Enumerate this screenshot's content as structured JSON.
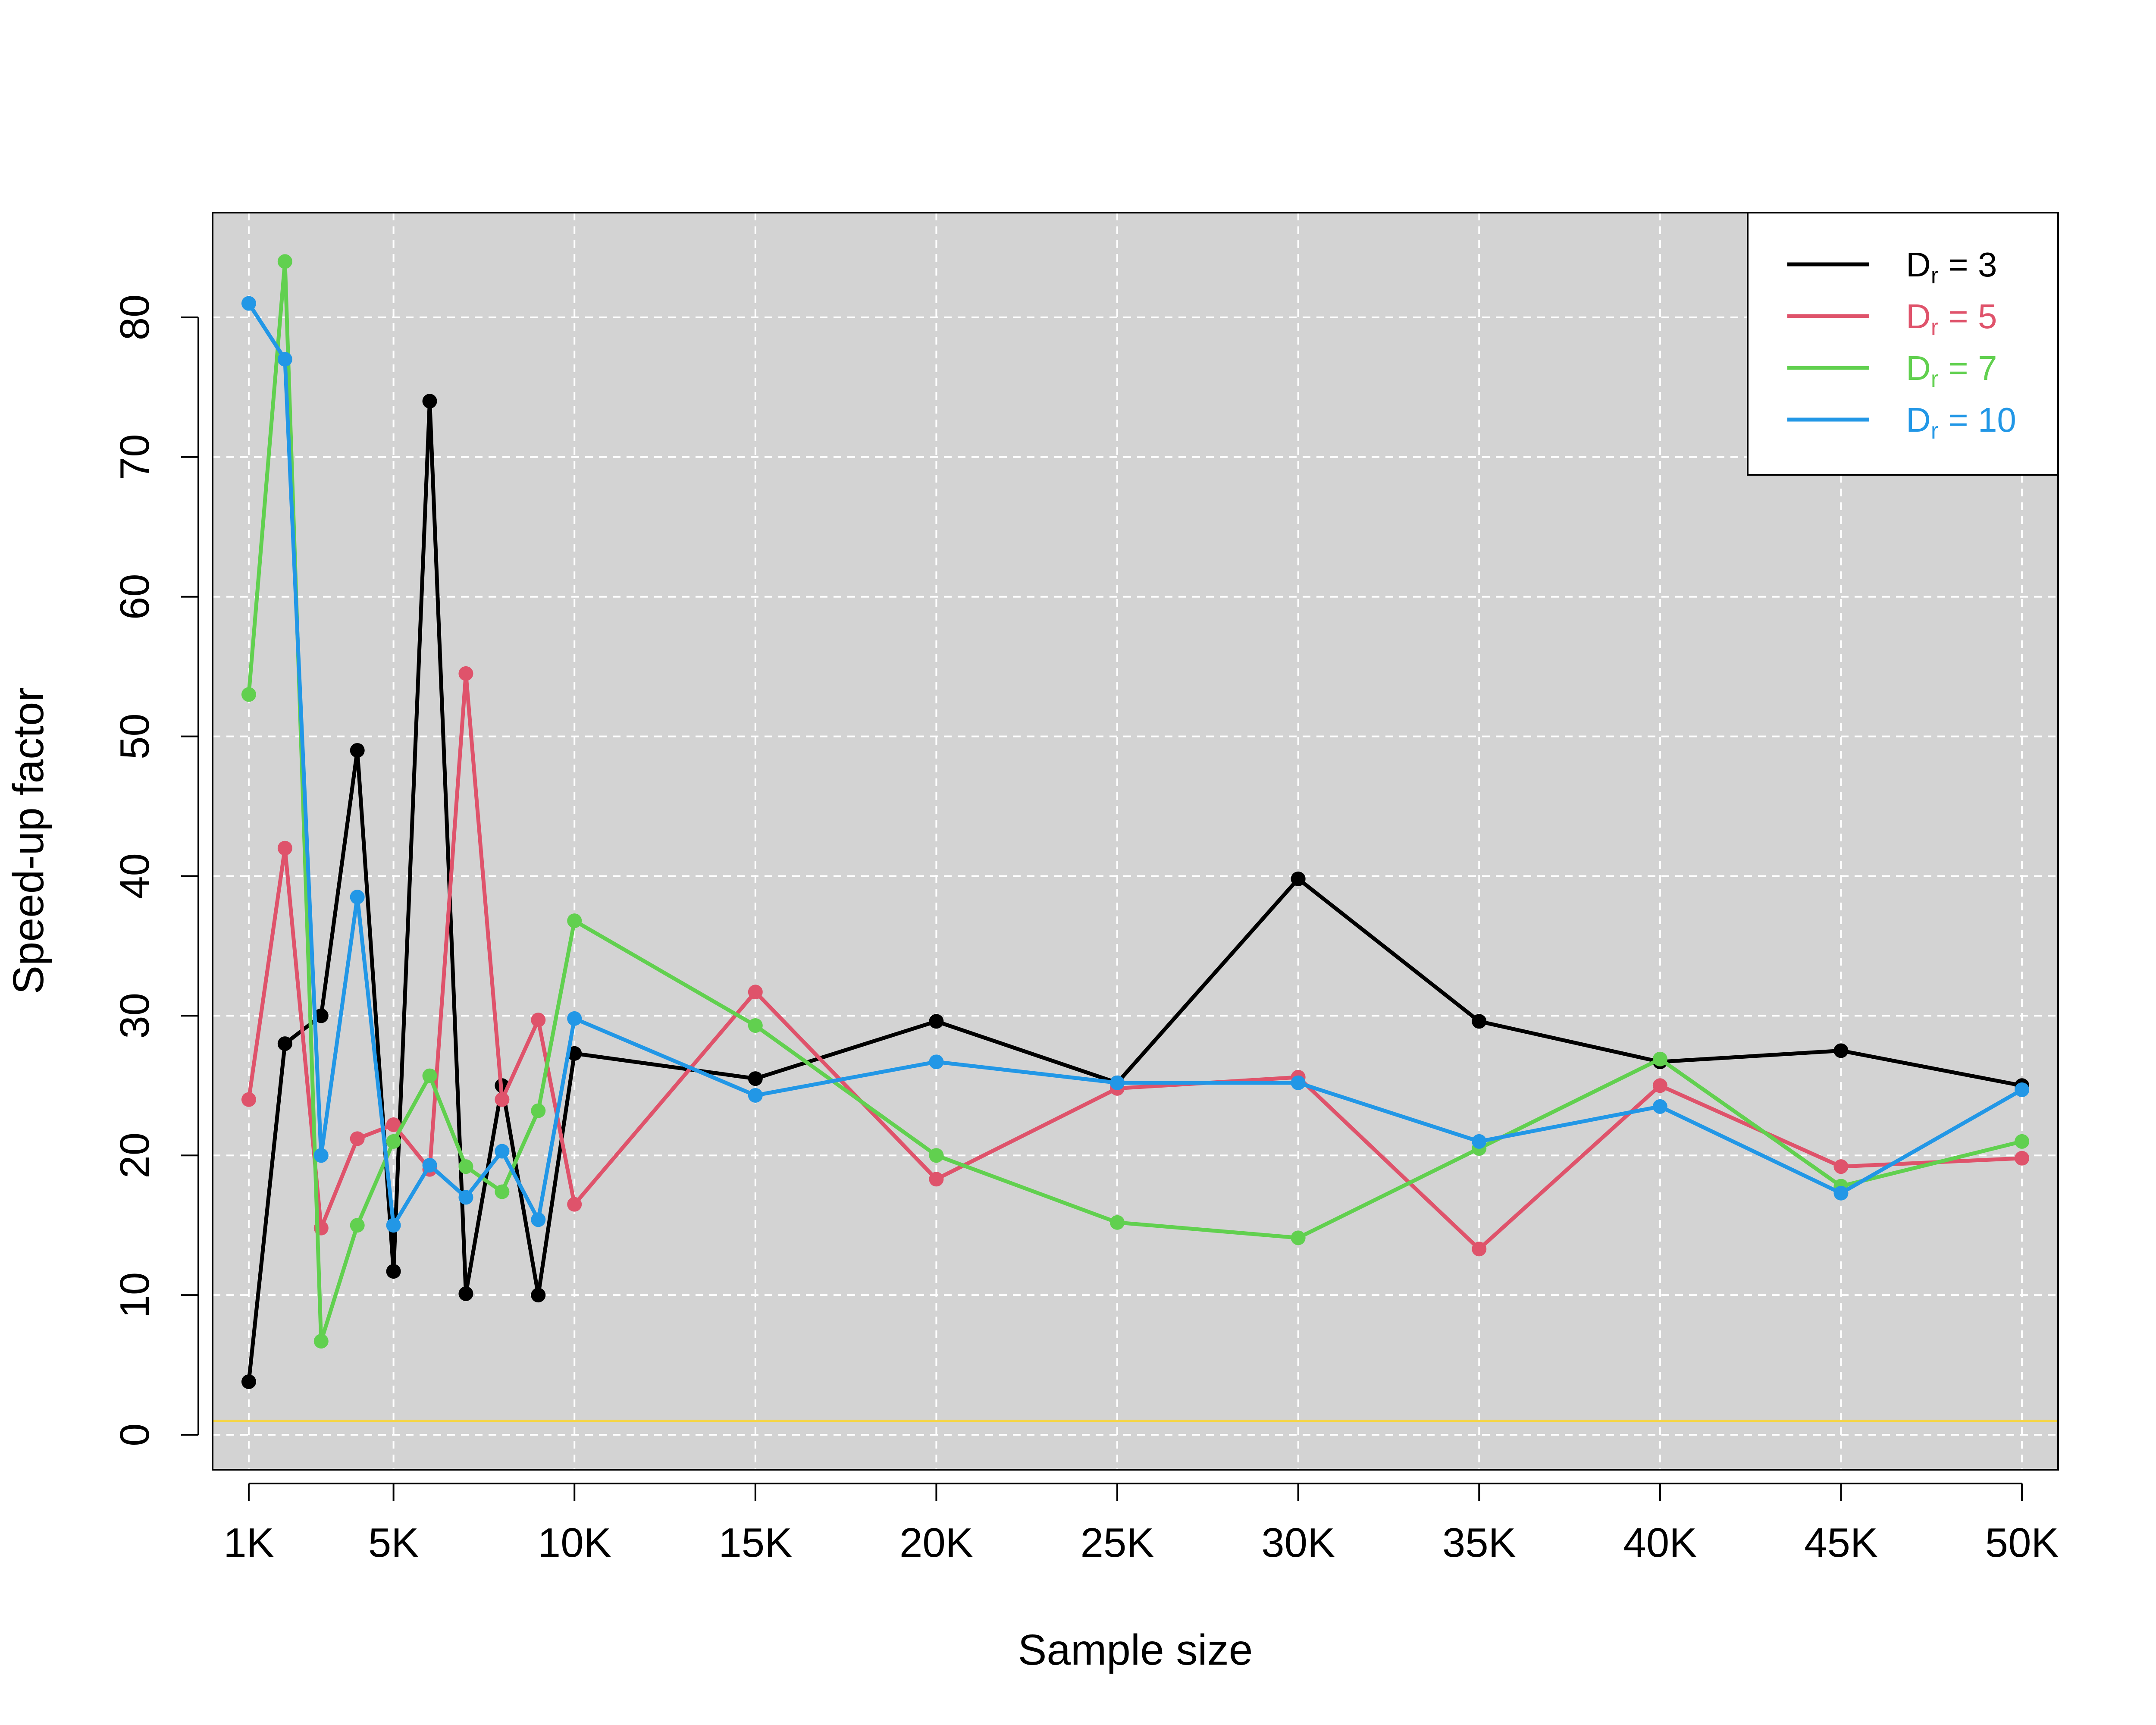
{
  "chart_data": {
    "type": "line",
    "xlabel": "Sample size",
    "ylabel": "Speed-up factor",
    "xlim": [
      0,
      51000
    ],
    "ylim": [
      -2.5,
      87.5
    ],
    "grid": true,
    "legend_position": "top-right",
    "x_ticks": [
      {
        "value": 1000,
        "label": "1K"
      },
      {
        "value": 5000,
        "label": "5K"
      },
      {
        "value": 10000,
        "label": "10K"
      },
      {
        "value": 15000,
        "label": "15K"
      },
      {
        "value": 20000,
        "label": "20K"
      },
      {
        "value": 25000,
        "label": "25K"
      },
      {
        "value": 30000,
        "label": "30K"
      },
      {
        "value": 35000,
        "label": "35K"
      },
      {
        "value": 40000,
        "label": "40K"
      },
      {
        "value": 45000,
        "label": "45K"
      },
      {
        "value": 50000,
        "label": "50K"
      }
    ],
    "y_ticks": [
      {
        "value": 0,
        "label": "0"
      },
      {
        "value": 10,
        "label": "10"
      },
      {
        "value": 20,
        "label": "20"
      },
      {
        "value": 30,
        "label": "30"
      },
      {
        "value": 40,
        "label": "40"
      },
      {
        "value": 50,
        "label": "50"
      },
      {
        "value": 60,
        "label": "60"
      },
      {
        "value": 70,
        "label": "70"
      },
      {
        "value": 80,
        "label": "80"
      }
    ],
    "x": [
      1000,
      2000,
      3000,
      4000,
      5000,
      6000,
      7000,
      8000,
      9000,
      10000,
      15000,
      20000,
      25000,
      30000,
      35000,
      40000,
      45000,
      50000
    ],
    "reference_line": {
      "y": 1,
      "color": "#F5D547"
    },
    "series": [
      {
        "name_main": "D",
        "name_sub": "r",
        "name_rest": " = 3",
        "color": "#000000",
        "values": [
          3.8,
          28,
          30,
          49,
          11.7,
          74,
          10.1,
          25,
          10,
          27.3,
          25.5,
          29.6,
          25.2,
          39.8,
          29.6,
          26.7,
          27.5,
          25
        ]
      },
      {
        "name_main": "D",
        "name_sub": "r",
        "name_rest": " = 5",
        "color": "#DF536B",
        "values": [
          24,
          42,
          14.8,
          21.2,
          22.2,
          19,
          54.5,
          24,
          29.7,
          16.5,
          31.7,
          18.3,
          24.8,
          25.6,
          13.3,
          25,
          19.2,
          19.8
        ]
      },
      {
        "name_main": "D",
        "name_sub": "r",
        "name_rest": " = 7",
        "color": "#61D04F",
        "values": [
          53,
          84,
          6.7,
          15,
          21,
          25.7,
          19.2,
          17.4,
          23.2,
          36.8,
          29.3,
          20,
          15.2,
          14.1,
          20.5,
          26.9,
          17.8,
          21
        ]
      },
      {
        "name_main": "D",
        "name_sub": "r",
        "name_rest": " = 10",
        "color": "#2297E6",
        "values": [
          81,
          77,
          20,
          38.5,
          15,
          19.3,
          17,
          20.3,
          15.4,
          29.8,
          24.3,
          26.7,
          25.2,
          25.2,
          21,
          23.5,
          17.3,
          24.7
        ]
      }
    ]
  }
}
